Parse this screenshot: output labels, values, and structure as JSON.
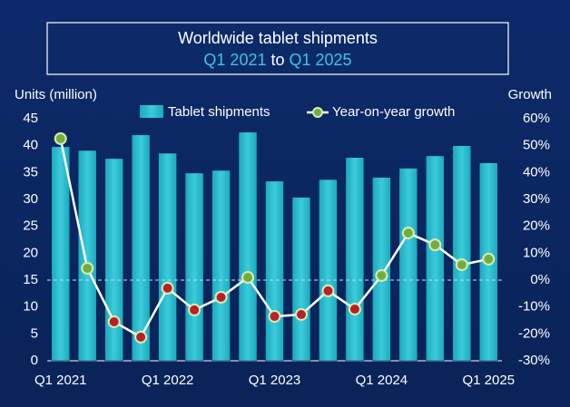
{
  "chart_data": {
    "type": "bar_line",
    "title": "Worldwide tablet shipments",
    "subtitle_parts": [
      {
        "text": "Q1 2021",
        "color": "#3fc4e0"
      },
      {
        "text": "to",
        "color": "#ffffff"
      },
      {
        "text": "Q1 2025",
        "color": "#3fc4e0"
      }
    ],
    "y_label": "Units (million)",
    "y2_label": "Growth",
    "categories": [
      "Q1 2021",
      null,
      null,
      null,
      "Q1 2022",
      null,
      null,
      null,
      "Q1 2023",
      null,
      null,
      null,
      "Q1 2024",
      null,
      null,
      null,
      "Q1 2025"
    ],
    "series": [
      {
        "name": "Tablet shipments",
        "color": "#26b9cc",
        "values": [
          39.8,
          39.1,
          37.6,
          42.0,
          38.6,
          34.9,
          35.4,
          42.5,
          33.4,
          30.4,
          33.7,
          37.8,
          34.1,
          35.8,
          38.1,
          40.0,
          36.8
        ]
      },
      {
        "name": "Year-on-year growth",
        "color": "#ffffff",
        "axis": "y2",
        "positive_color": "#74ad3f",
        "negative_color": "#b8202a",
        "values": [
          52.6,
          4.4,
          -15.5,
          -21.2,
          -3.0,
          -11.1,
          -6.4,
          1.0,
          -13.5,
          -12.8,
          -4.0,
          -10.8,
          1.7,
          17.5,
          13.1,
          5.7,
          7.8
        ]
      }
    ],
    "ylim": [
      0,
      45
    ],
    "yticks": [
      0,
      5,
      10,
      15,
      20,
      25,
      30,
      35,
      40,
      45
    ],
    "y2lim": [
      -30,
      60
    ],
    "y2ticks": [
      {
        "value": -30,
        "label": "-30%"
      },
      {
        "value": -20,
        "label": "-20%"
      },
      {
        "value": -10,
        "label": "-10%"
      },
      {
        "value": 0,
        "label": "0%"
      },
      {
        "value": 10,
        "label": "10%"
      },
      {
        "value": 20,
        "label": "20%"
      },
      {
        "value": 30,
        "label": "30%"
      },
      {
        "value": 40,
        "label": "40%"
      },
      {
        "value": 50,
        "label": "50%"
      },
      {
        "value": 60,
        "label": "60%"
      }
    ]
  }
}
